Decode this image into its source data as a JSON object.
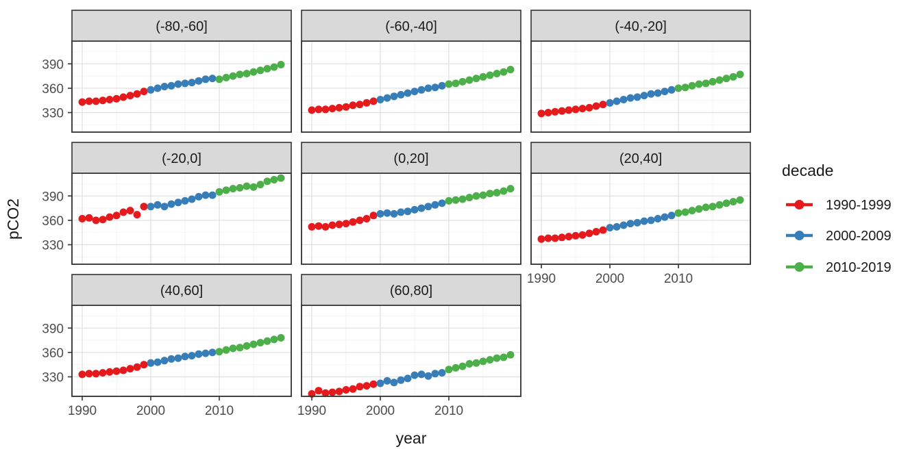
{
  "figure": {
    "kind": "faceted scatter plot",
    "background": "#ffffff"
  },
  "axes": {
    "x_title": "year",
    "y_title": "pCO2",
    "x_tick_labels": [
      "1990",
      "2000",
      "2010"
    ],
    "y_tick_labels": [
      "390",
      "360",
      "330"
    ]
  },
  "legend": {
    "title": "decade",
    "entries": [
      {
        "label": "1990-1999",
        "color": "#E41A1C"
      },
      {
        "label": "2000-2009",
        "color": "#377EB8"
      },
      {
        "label": "2010-2019",
        "color": "#4DAF4A"
      }
    ]
  },
  "colors": {
    "red": "#E41A1C",
    "blue": "#377EB8",
    "green": "#4DAF4A",
    "strip_background": "#D9D9D9",
    "panel_border": "#333333",
    "grid_major": "#E0E0E0",
    "grid_minor": "#F2F2F2",
    "tick_text": "#4d4d4d",
    "title_text": "#1a1a1a"
  },
  "chart_data": {
    "type": "scatter",
    "title": "",
    "xlabel": "year",
    "ylabel": "pCO2",
    "x_domain": [
      1988.5,
      2020.5
    ],
    "y_domain": [
      306,
      418
    ],
    "x_ticks": [
      1990,
      2000,
      2010
    ],
    "y_ticks": [
      390,
      360,
      330
    ],
    "x_minor": [
      1995,
      2005,
      2015
    ],
    "y_minor": [
      405,
      375,
      345,
      315
    ],
    "grid": true,
    "legend_position": "right",
    "years": [
      1990,
      1991,
      1992,
      1993,
      1994,
      1995,
      1996,
      1997,
      1998,
      1999,
      2000,
      2001,
      2002,
      2003,
      2004,
      2005,
      2006,
      2007,
      2008,
      2009,
      2010,
      2011,
      2012,
      2013,
      2014,
      2015,
      2016,
      2017,
      2018,
      2019
    ],
    "decades": [
      {
        "label": "1990-1999",
        "start": 1990,
        "end": 1999,
        "color": "#E41A1C"
      },
      {
        "label": "2000-2009",
        "start": 2000,
        "end": 2009,
        "color": "#377EB8"
      },
      {
        "label": "2010-2019",
        "start": 2010,
        "end": 2019,
        "color": "#4DAF4A"
      }
    ],
    "facets": [
      {
        "label": "(-80,-60]",
        "values": [
          343,
          344,
          344,
          345,
          346,
          347,
          349,
          351,
          353,
          356,
          358,
          360,
          362,
          363,
          365,
          366,
          367,
          369,
          371,
          372,
          371,
          373,
          375,
          377,
          378,
          380,
          382,
          384,
          386,
          389
        ]
      },
      {
        "label": "(-60,-40]",
        "values": [
          333,
          334,
          334,
          335,
          336,
          337,
          339,
          340,
          342,
          344,
          346,
          348,
          350,
          352,
          354,
          356,
          358,
          360,
          361,
          363,
          365,
          366,
          368,
          370,
          372,
          374,
          376,
          378,
          380,
          383
        ]
      },
      {
        "label": "(-40,-20]",
        "values": [
          329,
          330,
          331,
          332,
          333,
          334,
          335,
          336,
          338,
          340,
          342,
          344,
          346,
          348,
          349,
          351,
          353,
          354,
          356,
          358,
          360,
          361,
          363,
          365,
          366,
          368,
          370,
          372,
          374,
          377
        ]
      },
      {
        "label": "(-20,0]",
        "values": [
          362,
          363,
          360,
          361,
          364,
          366,
          370,
          372,
          367,
          377,
          377,
          379,
          377,
          380,
          382,
          384,
          386,
          389,
          391,
          391,
          395,
          397,
          399,
          400,
          402,
          401,
          404,
          408,
          410,
          412
        ]
      },
      {
        "label": "(0,20]",
        "values": [
          352,
          353,
          352,
          354,
          355,
          356,
          358,
          360,
          362,
          366,
          368,
          369,
          368,
          370,
          371,
          373,
          375,
          377,
          379,
          381,
          384,
          385,
          386,
          388,
          390,
          391,
          393,
          394,
          396,
          399
        ]
      },
      {
        "label": "(20,40]",
        "values": [
          337,
          338,
          338,
          339,
          340,
          341,
          342,
          344,
          346,
          348,
          351,
          352,
          354,
          356,
          357,
          359,
          360,
          362,
          364,
          366,
          369,
          370,
          372,
          374,
          376,
          377,
          379,
          381,
          383,
          385
        ]
      },
      {
        "label": "(40,60]",
        "values": [
          333,
          334,
          334,
          335,
          336,
          337,
          338,
          340,
          342,
          345,
          347,
          348,
          350,
          352,
          353,
          355,
          356,
          358,
          359,
          360,
          361,
          363,
          365,
          366,
          368,
          370,
          372,
          374,
          376,
          378
        ]
      },
      {
        "label": "(60,80]",
        "values": [
          309,
          313,
          310,
          311,
          312,
          314,
          315,
          318,
          319,
          321,
          322,
          325,
          323,
          326,
          328,
          332,
          333,
          331,
          334,
          335,
          339,
          341,
          343,
          346,
          347,
          349,
          351,
          353,
          354,
          357
        ]
      }
    ]
  }
}
